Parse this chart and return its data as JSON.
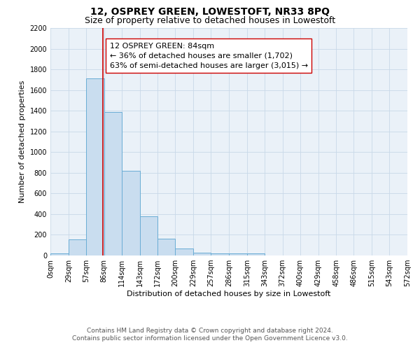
{
  "title": "12, OSPREY GREEN, LOWESTOFT, NR33 8PQ",
  "subtitle": "Size of property relative to detached houses in Lowestoft",
  "xlabel": "Distribution of detached houses by size in Lowestoft",
  "ylabel": "Number of detached properties",
  "bin_edges": [
    0,
    29,
    57,
    86,
    114,
    143,
    172,
    200,
    229,
    257,
    286,
    315,
    343,
    372,
    400,
    429,
    458,
    486,
    515,
    543,
    572
  ],
  "bin_labels": [
    "0sqm",
    "29sqm",
    "57sqm",
    "86sqm",
    "114sqm",
    "143sqm",
    "172sqm",
    "200sqm",
    "229sqm",
    "257sqm",
    "286sqm",
    "315sqm",
    "343sqm",
    "372sqm",
    "400sqm",
    "429sqm",
    "458sqm",
    "486sqm",
    "515sqm",
    "543sqm",
    "572sqm"
  ],
  "bar_heights": [
    20,
    155,
    1710,
    1390,
    820,
    380,
    160,
    65,
    30,
    20,
    20,
    20,
    0,
    0,
    0,
    0,
    0,
    0,
    0,
    0
  ],
  "bar_color": "#c9ddef",
  "bar_edge_color": "#6aadd5",
  "property_line_x": 84,
  "property_line_color": "#cc0000",
  "annotation_line1": "12 OSPREY GREEN: 84sqm",
  "annotation_line2": "← 36% of detached houses are smaller (1,702)",
  "annotation_line3": "63% of semi-detached houses are larger (3,015) →",
  "annotation_box_edge_color": "#cc0000",
  "annotation_box_face_color": "white",
  "ylim": [
    0,
    2200
  ],
  "yticks": [
    0,
    200,
    400,
    600,
    800,
    1000,
    1200,
    1400,
    1600,
    1800,
    2000,
    2200
  ],
  "grid_color": "#c8d8e8",
  "background_color": "#eaf1f8",
  "footer_line1": "Contains HM Land Registry data © Crown copyright and database right 2024.",
  "footer_line2": "Contains public sector information licensed under the Open Government Licence v3.0.",
  "title_fontsize": 10,
  "subtitle_fontsize": 9,
  "xlabel_fontsize": 8,
  "ylabel_fontsize": 8,
  "tick_fontsize": 7,
  "annotation_fontsize": 8,
  "footer_fontsize": 6.5
}
